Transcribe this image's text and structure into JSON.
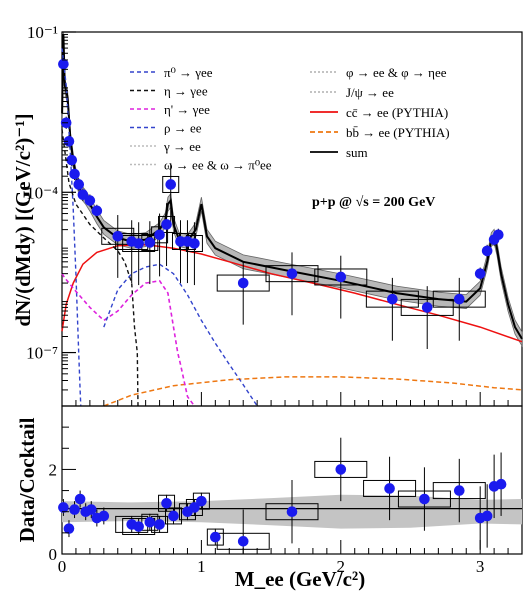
{
  "chart_data": [
    {
      "type": "line",
      "panel": "top",
      "ylabel": "dN/(dMdy) [(GeV/c²)⁻¹]",
      "xlim": [
        0,
        3.3
      ],
      "ylim": [
        1e-08,
        0.1
      ],
      "yscale": "log",
      "xticks": [
        0,
        1,
        2,
        3
      ],
      "ytick_labels": [
        "10⁻¹",
        "10⁻⁴",
        "10⁻⁷"
      ],
      "ytick_values": [
        0.1,
        0.0001,
        1e-07
      ],
      "annotation": "p+p @ √s = 200 GeV",
      "legend_left": [
        {
          "label": "π⁰ → γee",
          "color": "#3344cc",
          "dash": "4,3"
        },
        {
          "label": "η → γee",
          "color": "#111111",
          "dash": "4,3"
        },
        {
          "label": "η' → γee",
          "color": "#dd22dd",
          "dash": "4,3"
        },
        {
          "label": "ρ → ee",
          "color": "#3344cc",
          "dash": "4,3"
        },
        {
          "label": "γ → ee",
          "color": "#bbbbbb",
          "dash": "2,2"
        },
        {
          "label": "ω → ee & ω → π⁰ee",
          "color": "#bbbbbb",
          "dash": "2,2"
        }
      ],
      "legend_right": [
        {
          "label": "φ → ee & φ → ηee",
          "color": "#bbbbbb",
          "dash": "2,2"
        },
        {
          "label": "J/ψ → ee",
          "color": "#bbbbbb",
          "dash": "2,2"
        },
        {
          "label": "cc̄ → ee (PYTHIA)",
          "color": "#ee1111",
          "dash": ""
        },
        {
          "label": "bb̄ → ee (PYTHIA)",
          "color": "#ee7711",
          "dash": "5,3"
        },
        {
          "label": "sum",
          "color": "#000000",
          "dash": ""
        }
      ],
      "series": [
        {
          "key": "sum",
          "x": [
            0.001,
            0.01,
            0.02,
            0.04,
            0.06,
            0.08,
            0.1,
            0.12,
            0.14,
            0.17,
            0.2,
            0.25,
            0.3,
            0.4,
            0.5,
            0.6,
            0.7,
            0.74,
            0.76,
            0.78,
            0.8,
            0.84,
            0.9,
            0.96,
            1.0,
            1.02,
            1.04,
            1.1,
            1.3,
            1.6,
            2.0,
            2.4,
            2.7,
            2.9,
            3.0,
            3.05,
            3.08,
            3.1,
            3.12,
            3.15,
            3.2,
            3.25,
            3.3
          ],
          "y": [
            0.003,
            0.09,
            0.01,
            0.006,
            0.001,
            0.0004,
            0.0002,
            0.00013,
            0.0001,
            8e-05,
            6e-05,
            3.5e-05,
            2.2e-05,
            1.4e-05,
            1.2e-05,
            1.3e-05,
            2e-05,
            3e-05,
            6e-05,
            7e-05,
            2.5e-05,
            1.3e-05,
            1.2e-05,
            2e-05,
            6e-05,
            3e-05,
            1.5e-05,
            9e-06,
            5e-06,
            3.5e-06,
            2.2e-06,
            1.3e-06,
            1e-06,
            9e-07,
            1.6e-06,
            5e-06,
            1.3e-05,
            1.5e-05,
            9e-06,
            3e-06,
            8e-07,
            3e-07,
            1.8e-07
          ]
        },
        {
          "key": "ccbar",
          "x": [
            0.0,
            0.03,
            0.08,
            0.15,
            0.25,
            0.4,
            0.6,
            0.8,
            1.0,
            1.2,
            1.5,
            1.8,
            2.1,
            2.4,
            2.7,
            3.0,
            3.3
          ],
          "y": [
            2.5e-07,
            8e-07,
            2e-06,
            4.5e-06,
            7.5e-06,
            1e-05,
            1.05e-05,
            9e-06,
            7e-06,
            5e-06,
            3e-06,
            2e-06,
            1.3e-06,
            8e-07,
            5e-07,
            3e-07,
            1.6e-07
          ]
        },
        {
          "key": "bbbar",
          "x": [
            0.3,
            0.5,
            0.8,
            1.2,
            1.6,
            2.0,
            2.4,
            2.8,
            3.1,
            3.3
          ],
          "y": [
            1e-08,
            1.6e-08,
            2.4e-08,
            3.1e-08,
            3.5e-08,
            3.5e-08,
            3.2e-08,
            2.7e-08,
            2.2e-08,
            2e-08
          ]
        },
        {
          "key": "pi0",
          "x": [
            0.0,
            0.03,
            0.06,
            0.08,
            0.1,
            0.12,
            0.13,
            0.135
          ],
          "y": [
            0.05,
            0.01,
            0.0005,
            5e-05,
            3e-06,
            1e-07,
            2e-08,
            1e-08
          ]
        },
        {
          "key": "eta",
          "x": [
            0.0,
            0.05,
            0.1,
            0.2,
            0.3,
            0.4,
            0.45,
            0.5,
            0.52,
            0.54,
            0.545
          ],
          "y": [
            0.0015,
            0.00015,
            6e-05,
            2.5e-05,
            1.4e-05,
            8e-06,
            5e-06,
            2e-06,
            3e-07,
            1e-07,
            1e-08
          ]
        },
        {
          "key": "etaprime",
          "x": [
            0.0,
            0.02,
            0.05,
            0.1,
            0.2,
            0.3,
            0.4,
            0.5,
            0.6,
            0.7,
            0.76,
            0.8,
            0.83,
            0.85,
            0.9,
            0.95
          ],
          "y": [
            3e-06,
            2.5e-06,
            2e-06,
            1.4e-06,
            7e-07,
            4e-07,
            6e-07,
            1.2e-06,
            2e-06,
            2.2e-06,
            1.3e-06,
            3e-07,
            1e-07,
            6e-08,
            1.5e-08,
            1e-08
          ]
        },
        {
          "key": "rho",
          "x": [
            0.3,
            0.4,
            0.5,
            0.6,
            0.7,
            0.8,
            0.9,
            1.0,
            1.1,
            1.2,
            1.3,
            1.4
          ],
          "y": [
            3e-07,
            1.5e-06,
            3e-06,
            4e-06,
            4.5e-06,
            3e-06,
            1.2e-06,
            4e-07,
            1.5e-07,
            6e-08,
            2.5e-08,
            1e-08
          ]
        }
      ],
      "data_points": {
        "x": [
          0.01,
          0.03,
          0.05,
          0.07,
          0.09,
          0.12,
          0.15,
          0.2,
          0.25,
          0.4,
          0.5,
          0.55,
          0.63,
          0.7,
          0.75,
          0.78,
          0.85,
          0.9,
          0.95,
          1.3,
          1.65,
          2.0,
          2.37,
          2.62,
          2.85,
          3.0,
          3.05,
          3.1,
          3.13
        ],
        "y": [
          0.025,
          0.002,
          0.0009,
          0.0004,
          0.00022,
          0.00014,
          9e-05,
          7e-05,
          4.5e-05,
          1.5e-05,
          1.2e-05,
          1.1e-05,
          1.15e-05,
          1.6e-05,
          2.5e-05,
          0.00014,
          1.2e-05,
          1.2e-05,
          1.1e-05,
          2e-06,
          3e-06,
          2.6e-06,
          1e-06,
          7e-07,
          1e-06,
          3e-06,
          8e-06,
          1.3e-05,
          1.6e-05
        ],
        "color": "#1a1aee"
      }
    },
    {
      "type": "scatter",
      "panel": "bottom",
      "xlabel": "M_ee (GeV/c²)",
      "ylabel": "Data/Cocktail",
      "xlim": [
        0,
        3.3
      ],
      "ylim": [
        0,
        3.5
      ],
      "xticks": [
        0,
        1,
        2,
        3
      ],
      "yticks": [
        0,
        2
      ],
      "x": [
        0.01,
        0.05,
        0.09,
        0.13,
        0.17,
        0.21,
        0.25,
        0.3,
        0.5,
        0.55,
        0.63,
        0.7,
        0.75,
        0.8,
        0.9,
        0.95,
        1.0,
        1.1,
        1.3,
        1.65,
        2.0,
        2.35,
        2.6,
        2.85,
        3.0,
        3.05,
        3.1,
        3.15
      ],
      "y": [
        1.1,
        0.6,
        1.05,
        1.3,
        1.0,
        1.05,
        0.85,
        0.9,
        0.7,
        0.65,
        0.75,
        0.7,
        1.2,
        0.9,
        1.0,
        1.1,
        1.25,
        0.4,
        0.3,
        1.0,
        2.0,
        1.55,
        1.3,
        1.5,
        0.85,
        0.9,
        1.6,
        1.65
      ],
      "color": "#1a1aee"
    }
  ]
}
